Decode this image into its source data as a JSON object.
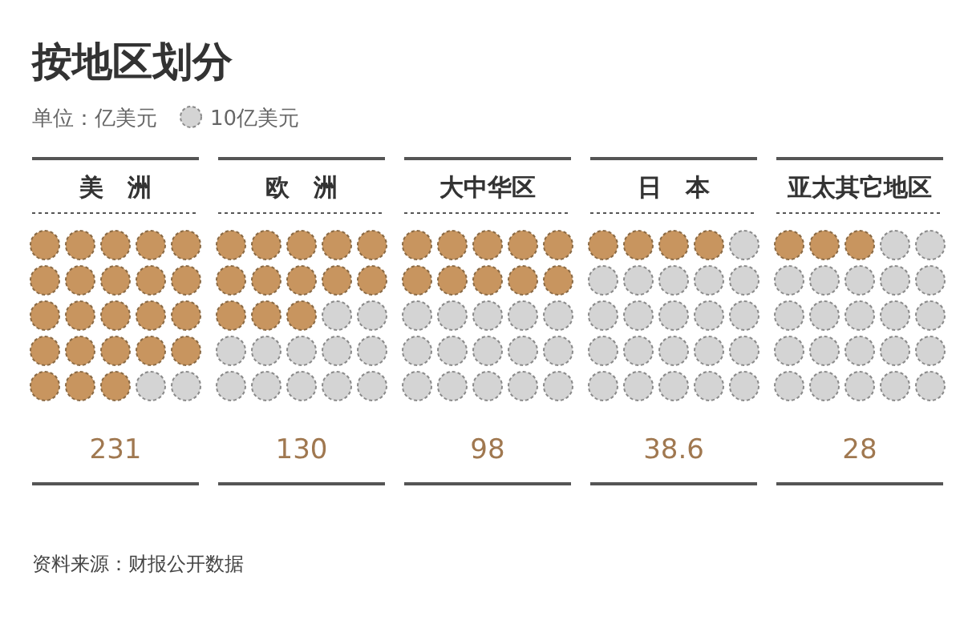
{
  "chart_data": {
    "type": "other",
    "title": "按地区划分",
    "subtitle": "单位：亿美元",
    "categories": [
      "美　洲",
      "欧　洲",
      "大中华区",
      "日　本",
      "亚太其它地区"
    ],
    "values": [
      231,
      130,
      98,
      38.6,
      28
    ],
    "data_labels": true,
    "color": "#c8955f",
    "annotations": [
      "10亿美元",
      "资料来源：财报公开数据"
    ]
  }
}
